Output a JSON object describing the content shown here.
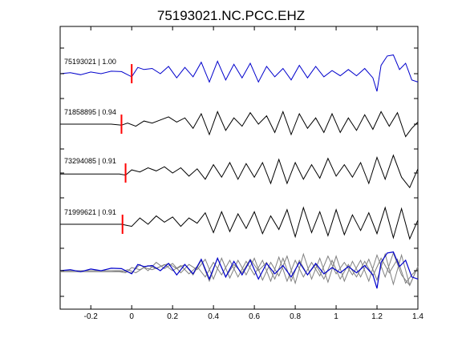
{
  "chart_data": {
    "type": "line",
    "title": "75193021.NC.PCC.EHZ",
    "xlabel": "",
    "ylabel": "",
    "xlim": [
      -0.35,
      1.4
    ],
    "x_ticks": [
      -0.2,
      0,
      0.2,
      0.4,
      0.6,
      0.8,
      1,
      1.2,
      1.4
    ],
    "x_tick_labels": [
      "-0.2",
      "0",
      "0.2",
      "0.4",
      "0.6",
      "0.8",
      "1",
      "1.2",
      "1.4"
    ],
    "grid": false,
    "series": [
      {
        "name": "75193021 | 1.00",
        "color": "#0000cc",
        "pick_time": 0.0,
        "x": [
          -0.35,
          -0.3,
          -0.25,
          -0.2,
          -0.15,
          -0.1,
          -0.05,
          0.0,
          0.03,
          0.06,
          0.1,
          0.14,
          0.18,
          0.22,
          0.26,
          0.3,
          0.34,
          0.38,
          0.42,
          0.46,
          0.5,
          0.54,
          0.58,
          0.62,
          0.66,
          0.7,
          0.74,
          0.78,
          0.82,
          0.86,
          0.9,
          0.94,
          0.98,
          1.02,
          1.06,
          1.1,
          1.14,
          1.18,
          1.2,
          1.22,
          1.25,
          1.28,
          1.31,
          1.34,
          1.37,
          1.4
        ],
        "y": [
          0.0,
          0.05,
          -0.05,
          0.08,
          0.0,
          0.12,
          0.1,
          -0.15,
          0.3,
          0.2,
          0.25,
          0.0,
          0.35,
          -0.2,
          0.3,
          -0.15,
          0.55,
          -0.4,
          0.6,
          -0.3,
          0.45,
          -0.2,
          0.5,
          -0.4,
          0.35,
          -0.15,
          0.25,
          -0.3,
          0.4,
          -0.2,
          0.35,
          -0.15,
          0.15,
          -0.1,
          0.2,
          -0.1,
          0.25,
          -0.2,
          -0.85,
          0.4,
          0.85,
          0.9,
          0.2,
          0.5,
          -0.3,
          -0.4
        ]
      },
      {
        "name": "71858895 | 0.94",
        "color": "#000000",
        "pick_time": -0.05,
        "x": [
          -0.35,
          -0.3,
          -0.25,
          -0.2,
          -0.15,
          -0.1,
          -0.05,
          -0.02,
          0.02,
          0.06,
          0.1,
          0.14,
          0.18,
          0.22,
          0.26,
          0.3,
          0.34,
          0.38,
          0.42,
          0.46,
          0.5,
          0.54,
          0.58,
          0.62,
          0.66,
          0.7,
          0.74,
          0.78,
          0.82,
          0.86,
          0.9,
          0.94,
          0.98,
          1.02,
          1.06,
          1.1,
          1.14,
          1.18,
          1.22,
          1.26,
          1.3,
          1.34,
          1.37,
          1.4
        ],
        "y": [
          0.0,
          0.0,
          0.0,
          0.0,
          0.0,
          0.0,
          -0.05,
          0.05,
          -0.1,
          0.15,
          0.05,
          0.2,
          0.35,
          0.1,
          0.3,
          -0.2,
          0.5,
          -0.5,
          0.6,
          -0.3,
          0.3,
          -0.1,
          0.55,
          0.0,
          0.4,
          -0.4,
          0.6,
          -0.5,
          0.5,
          -0.2,
          0.3,
          -0.4,
          0.5,
          -0.4,
          0.3,
          -0.3,
          0.45,
          -0.25,
          0.6,
          -0.1,
          0.55,
          -0.6,
          -0.2,
          0.1
        ]
      },
      {
        "name": "73294085 | 0.91",
        "color": "#000000",
        "pick_time": -0.03,
        "x": [
          -0.35,
          -0.3,
          -0.25,
          -0.2,
          -0.15,
          -0.1,
          -0.06,
          -0.03,
          0.0,
          0.04,
          0.08,
          0.12,
          0.16,
          0.2,
          0.24,
          0.28,
          0.32,
          0.36,
          0.4,
          0.44,
          0.48,
          0.52,
          0.56,
          0.6,
          0.64,
          0.68,
          0.72,
          0.76,
          0.8,
          0.84,
          0.88,
          0.92,
          0.96,
          1.0,
          1.04,
          1.08,
          1.12,
          1.16,
          1.2,
          1.24,
          1.28,
          1.32,
          1.36,
          1.4
        ],
        "y": [
          -0.05,
          -0.05,
          -0.05,
          -0.05,
          -0.05,
          -0.05,
          -0.05,
          -0.1,
          0.15,
          0.05,
          0.25,
          0.1,
          0.3,
          0.0,
          0.25,
          -0.15,
          0.2,
          -0.3,
          0.4,
          -0.2,
          0.5,
          -0.3,
          0.45,
          -0.2,
          0.5,
          -0.5,
          0.65,
          -0.5,
          0.5,
          -0.3,
          0.4,
          -0.25,
          0.7,
          -0.15,
          0.4,
          -0.2,
          0.5,
          -0.5,
          0.75,
          -0.3,
          0.85,
          -0.2,
          -0.7,
          0.2
        ]
      },
      {
        "name": "71999621 | 0.91",
        "color": "#000000",
        "pick_time": -0.045,
        "x": [
          -0.35,
          -0.3,
          -0.25,
          -0.2,
          -0.15,
          -0.1,
          -0.05,
          0.0,
          0.04,
          0.08,
          0.12,
          0.16,
          0.2,
          0.24,
          0.28,
          0.32,
          0.36,
          0.4,
          0.44,
          0.48,
          0.52,
          0.56,
          0.6,
          0.64,
          0.68,
          0.72,
          0.76,
          0.8,
          0.84,
          0.88,
          0.92,
          0.96,
          1.0,
          1.04,
          1.08,
          1.12,
          1.16,
          1.2,
          1.24,
          1.28,
          1.32,
          1.36,
          1.4
        ],
        "y": [
          0.0,
          0.0,
          0.0,
          0.0,
          0.0,
          0.0,
          0.0,
          -0.1,
          0.3,
          0.0,
          0.4,
          0.1,
          0.35,
          -0.1,
          0.3,
          0.05,
          0.55,
          -0.4,
          0.6,
          -0.35,
          0.5,
          -0.2,
          0.6,
          -0.45,
          0.4,
          -0.25,
          0.7,
          -0.6,
          0.8,
          -0.4,
          0.6,
          -0.55,
          0.7,
          -0.5,
          0.45,
          -0.3,
          0.55,
          -0.45,
          0.8,
          -0.65,
          0.75,
          -0.7,
          0.2
        ]
      }
    ]
  }
}
